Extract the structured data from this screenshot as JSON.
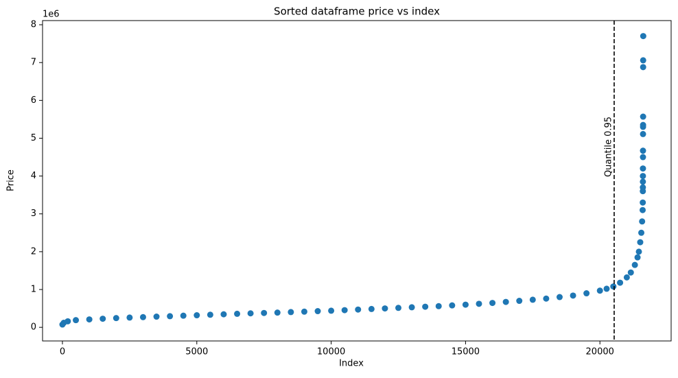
{
  "chart_data": {
    "type": "scatter",
    "title": "Sorted dataframe price vs index",
    "xlabel": "Index",
    "ylabel": "Price",
    "y_offset_label": "1e6",
    "xlim": [
      -740,
      22650
    ],
    "ylim": [
      -0.36,
      8.11
    ],
    "xticks": [
      0,
      5000,
      10000,
      15000,
      20000
    ],
    "yticks": [
      0,
      1,
      2,
      3,
      4,
      5,
      6,
      7,
      8
    ],
    "color": "#1f77b4",
    "x": [
      0,
      50,
      200,
      500,
      1000,
      1500,
      2000,
      2500,
      3000,
      3500,
      4000,
      4500,
      5000,
      5500,
      6000,
      6500,
      7000,
      7500,
      8000,
      8500,
      9000,
      9500,
      10000,
      10500,
      11000,
      11500,
      12000,
      12500,
      13000,
      13500,
      14000,
      14500,
      15000,
      15500,
      16000,
      16500,
      17000,
      17500,
      18000,
      18500,
      19000,
      19500,
      20000,
      20250,
      20500,
      20750,
      21000,
      21150,
      21300,
      21400,
      21450,
      21500,
      21540,
      21570,
      21590,
      21595,
      21597,
      21598,
      21599,
      21600,
      21601,
      21602,
      21603,
      21604,
      21605,
      21606,
      21607,
      21608,
      21609,
      21612
    ],
    "values": [
      0.075,
      0.12,
      0.16,
      0.19,
      0.21,
      0.228,
      0.245,
      0.258,
      0.27,
      0.283,
      0.295,
      0.308,
      0.32,
      0.333,
      0.345,
      0.358,
      0.37,
      0.38,
      0.39,
      0.403,
      0.415,
      0.428,
      0.44,
      0.455,
      0.47,
      0.485,
      0.5,
      0.515,
      0.53,
      0.545,
      0.56,
      0.58,
      0.6,
      0.622,
      0.645,
      0.672,
      0.7,
      0.73,
      0.76,
      0.8,
      0.84,
      0.9,
      0.97,
      1.02,
      1.08,
      1.18,
      1.32,
      1.45,
      1.65,
      1.85,
      2.0,
      2.25,
      2.5,
      2.8,
      3.1,
      3.3,
      3.6,
      3.7,
      3.85,
      4.0,
      4.2,
      4.5,
      4.67,
      5.11,
      5.3,
      5.35,
      5.57,
      6.88,
      7.06,
      7.7
    ],
    "vline": {
      "x": 20530,
      "label": "Quantile 0.95"
    }
  }
}
